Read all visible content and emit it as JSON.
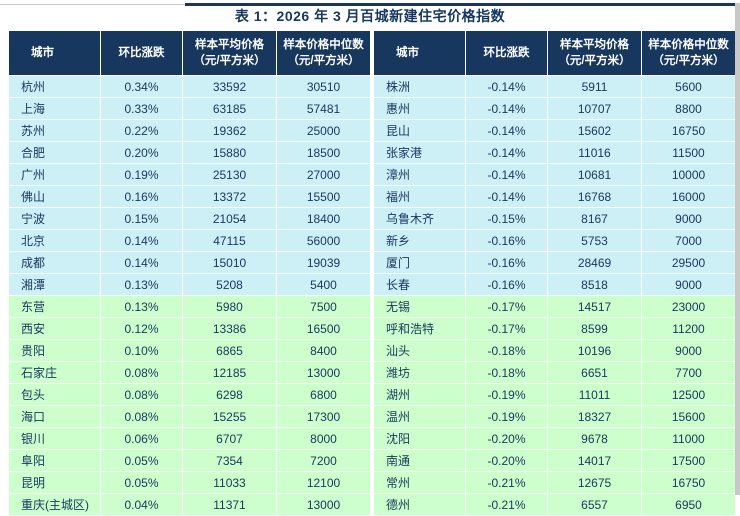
{
  "title": "表 1：2026 年 3 月百城新建住宅价格指数",
  "columns": [
    "城市",
    "环比涨跌",
    "样本平均价格\n（元/平方米）",
    "样本价格中位数\n（元/平方米）"
  ],
  "colors": {
    "header_bg": "#17375E",
    "band_cyan": "#CDEFF6",
    "band_green": "#CCFFCC",
    "text": "#17375E"
  },
  "left_table": {
    "rows": [
      {
        "city": "杭州",
        "change": "0.34%",
        "avg": "33592",
        "median": "30510",
        "band": "cyan"
      },
      {
        "city": "上海",
        "change": "0.33%",
        "avg": "63185",
        "median": "57481",
        "band": "cyan"
      },
      {
        "city": "苏州",
        "change": "0.22%",
        "avg": "19362",
        "median": "25000",
        "band": "cyan"
      },
      {
        "city": "合肥",
        "change": "0.20%",
        "avg": "15880",
        "median": "18500",
        "band": "cyan"
      },
      {
        "city": "广州",
        "change": "0.19%",
        "avg": "25130",
        "median": "27000",
        "band": "cyan"
      },
      {
        "city": "佛山",
        "change": "0.16%",
        "avg": "13372",
        "median": "15500",
        "band": "cyan"
      },
      {
        "city": "宁波",
        "change": "0.15%",
        "avg": "21054",
        "median": "18400",
        "band": "cyan"
      },
      {
        "city": "北京",
        "change": "0.14%",
        "avg": "47115",
        "median": "56000",
        "band": "cyan"
      },
      {
        "city": "成都",
        "change": "0.14%",
        "avg": "15010",
        "median": "19039",
        "band": "cyan"
      },
      {
        "city": "湘潭",
        "change": "0.13%",
        "avg": "5208",
        "median": "5400",
        "band": "cyan"
      },
      {
        "city": "东营",
        "change": "0.13%",
        "avg": "5980",
        "median": "7500",
        "band": "green"
      },
      {
        "city": "西安",
        "change": "0.12%",
        "avg": "13386",
        "median": "16500",
        "band": "green"
      },
      {
        "city": "贵阳",
        "change": "0.10%",
        "avg": "6865",
        "median": "8400",
        "band": "green"
      },
      {
        "city": "石家庄",
        "change": "0.08%",
        "avg": "12185",
        "median": "13000",
        "band": "green"
      },
      {
        "city": "包头",
        "change": "0.08%",
        "avg": "6298",
        "median": "6800",
        "band": "green"
      },
      {
        "city": "海口",
        "change": "0.08%",
        "avg": "15255",
        "median": "17300",
        "band": "green"
      },
      {
        "city": "银川",
        "change": "0.06%",
        "avg": "6707",
        "median": "8000",
        "band": "green"
      },
      {
        "city": "阜阳",
        "change": "0.05%",
        "avg": "7354",
        "median": "7200",
        "band": "green"
      },
      {
        "city": "昆明",
        "change": "0.05%",
        "avg": "11033",
        "median": "12100",
        "band": "green"
      },
      {
        "city": "重庆(主城区)",
        "change": "0.04%",
        "avg": "11371",
        "median": "13000",
        "band": "green"
      }
    ]
  },
  "right_table": {
    "rows": [
      {
        "city": "株洲",
        "change": "-0.14%",
        "avg": "5911",
        "median": "5600",
        "band": "cyan"
      },
      {
        "city": "惠州",
        "change": "-0.14%",
        "avg": "10707",
        "median": "8800",
        "band": "cyan"
      },
      {
        "city": "昆山",
        "change": "-0.14%",
        "avg": "15602",
        "median": "16750",
        "band": "cyan"
      },
      {
        "city": "张家港",
        "change": "-0.14%",
        "avg": "11016",
        "median": "11500",
        "band": "cyan"
      },
      {
        "city": "漳州",
        "change": "-0.14%",
        "avg": "10681",
        "median": "10000",
        "band": "cyan"
      },
      {
        "city": "福州",
        "change": "-0.14%",
        "avg": "16768",
        "median": "16000",
        "band": "cyan"
      },
      {
        "city": "乌鲁木齐",
        "change": "-0.15%",
        "avg": "8167",
        "median": "9000",
        "band": "cyan"
      },
      {
        "city": "新乡",
        "change": "-0.16%",
        "avg": "5753",
        "median": "7000",
        "band": "cyan"
      },
      {
        "city": "厦门",
        "change": "-0.16%",
        "avg": "28469",
        "median": "29500",
        "band": "cyan"
      },
      {
        "city": "长春",
        "change": "-0.16%",
        "avg": "8518",
        "median": "9000",
        "band": "cyan"
      },
      {
        "city": "无锡",
        "change": "-0.17%",
        "avg": "14517",
        "median": "23000",
        "band": "green"
      },
      {
        "city": "呼和浩特",
        "change": "-0.17%",
        "avg": "8599",
        "median": "11200",
        "band": "green"
      },
      {
        "city": "汕头",
        "change": "-0.18%",
        "avg": "10196",
        "median": "9000",
        "band": "green"
      },
      {
        "city": "潍坊",
        "change": "-0.18%",
        "avg": "6651",
        "median": "7700",
        "band": "green"
      },
      {
        "city": "湖州",
        "change": "-0.19%",
        "avg": "11011",
        "median": "12500",
        "band": "green"
      },
      {
        "city": "温州",
        "change": "-0.19%",
        "avg": "18327",
        "median": "15600",
        "band": "green"
      },
      {
        "city": "沈阳",
        "change": "-0.20%",
        "avg": "9678",
        "median": "11000",
        "band": "green"
      },
      {
        "city": "南通",
        "change": "-0.20%",
        "avg": "14017",
        "median": "17500",
        "band": "green"
      },
      {
        "city": "常州",
        "change": "-0.21%",
        "avg": "12675",
        "median": "16750",
        "band": "green"
      },
      {
        "city": "德州",
        "change": "-0.21%",
        "avg": "6557",
        "median": "6950",
        "band": "green"
      }
    ]
  }
}
